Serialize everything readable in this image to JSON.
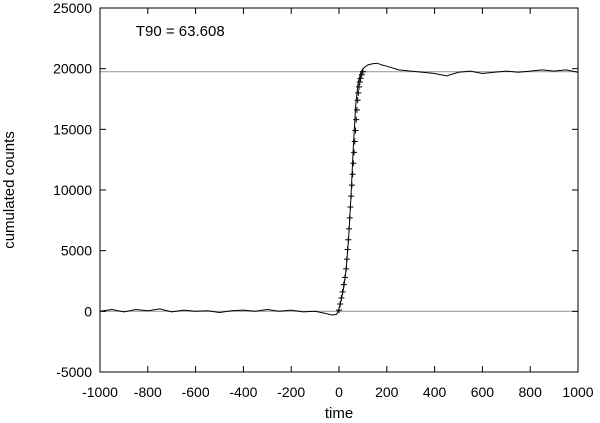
{
  "chart_data": {
    "type": "line",
    "title": "",
    "xlabel": "time",
    "ylabel": "cumulated counts",
    "xlim": [
      -1000,
      1000
    ],
    "ylim": [
      -5000,
      25000
    ],
    "x_ticks": [
      -1000,
      -800,
      -600,
      -400,
      -200,
      0,
      200,
      400,
      600,
      800,
      1000
    ],
    "y_ticks": [
      -5000,
      0,
      5000,
      10000,
      15000,
      20000,
      25000
    ],
    "grid": false,
    "legend": "none",
    "reference_lines": [
      {
        "y": 0,
        "color": "#a0a0a0"
      },
      {
        "y": 19750,
        "color": "#a0a0a0"
      }
    ],
    "annotations": [
      {
        "text": "T90 = 63.608",
        "x": -850,
        "y": 23100
      }
    ],
    "series": [
      {
        "style": "line",
        "color": "#000000",
        "x": [
          -1000,
          -950,
          -900,
          -850,
          -800,
          -750,
          -700,
          -650,
          -600,
          -550,
          -500,
          -450,
          -400,
          -350,
          -300,
          -250,
          -200,
          -150,
          -100,
          -60,
          -30,
          -10,
          0,
          10,
          20,
          30,
          40,
          50,
          60,
          70,
          80,
          90,
          100,
          120,
          140,
          160,
          180,
          200,
          250,
          300,
          350,
          400,
          450,
          500,
          550,
          600,
          650,
          700,
          750,
          800,
          850,
          900,
          950,
          1000
        ],
        "y": [
          0,
          150,
          -50,
          150,
          50,
          200,
          -50,
          100,
          0,
          50,
          -100,
          50,
          100,
          0,
          150,
          0,
          100,
          -50,
          0,
          -150,
          -300,
          -250,
          200,
          1000,
          2000,
          3500,
          6000,
          9500,
          13500,
          17000,
          18800,
          19600,
          20000,
          20300,
          20400,
          20450,
          20300,
          20200,
          19900,
          19800,
          19700,
          19600,
          19400,
          19700,
          19800,
          19600,
          19700,
          19800,
          19700,
          19800,
          19900,
          19800,
          19900,
          19700
        ]
      },
      {
        "style": "markers",
        "marker": "plus",
        "color": "#000000",
        "x": [
          0,
          5,
          10,
          15,
          20,
          25,
          30,
          33,
          36,
          39,
          42,
          45,
          48,
          51,
          54,
          57,
          60,
          63,
          66,
          69,
          72,
          75,
          78,
          81,
          84,
          87,
          90,
          95,
          100
        ],
        "y": [
          100,
          600,
          1100,
          1600,
          2200,
          2800,
          3500,
          4300,
          5100,
          5900,
          6800,
          7700,
          8600,
          9500,
          10400,
          11300,
          12200,
          13100,
          14000,
          14900,
          15800,
          16600,
          17400,
          18000,
          18500,
          18900,
          19200,
          19500,
          19750
        ]
      }
    ]
  }
}
